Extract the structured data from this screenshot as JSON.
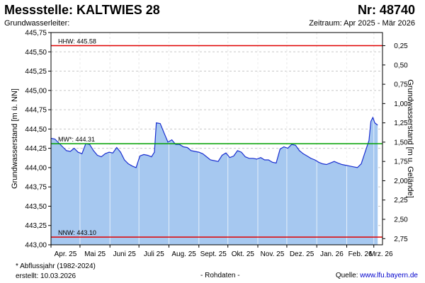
{
  "header": {
    "title": "Messstelle: KALTWIES 28",
    "number": "Nr: 48740",
    "subtitle_left": "Grundwasserleiter:",
    "subtitle_right": "Zeitraum: Apr 2025 - Mär 2026"
  },
  "footer": {
    "note": "* Abflussjahr (1982-2024)",
    "created": "erstellt:  10.03.2026",
    "raw": "- Rohdaten -",
    "source_label": "Quelle:",
    "source_link": "www.lfu.bayern.de"
  },
  "colors": {
    "fill": "#a6c8f0",
    "line": "#1a2fd0",
    "hhw": "#e00000",
    "nnw": "#e00000",
    "mw": "#00a000",
    "grid": "#c8c8c8"
  },
  "chart_data": {
    "type": "area",
    "ylabel": "Grundwasserstand [m ü. NN]",
    "ylabel_right": "Grundwasserstand [m u. Gelände]",
    "ylim": [
      443.0,
      445.75
    ],
    "y_ticks": [
      "445,75",
      "445,50",
      "445,25",
      "445,00",
      "444,75",
      "444,50",
      "444,25",
      "444,00",
      "443,75",
      "443,50",
      "443,25",
      "443,00"
    ],
    "y2_ticks": [
      "0,25",
      "0,50",
      "0,75",
      "1,00",
      "1,25",
      "1,50",
      "1,75",
      "2,00",
      "2,25",
      "2,50",
      "2,75"
    ],
    "x_ticks": [
      "Apr. 25",
      "Mai 25",
      "Juni 25",
      "Juli 25",
      "Aug. 25",
      "Sept. 25",
      "Okt. 25",
      "Nov. 25",
      "Dez. 25",
      "Jan. 26",
      "Feb. 26",
      "Mrz. 26"
    ],
    "grid": true,
    "reference_lines": [
      {
        "label": "HHW: 445.58",
        "value": 445.58
      },
      {
        "label": "MW*: 444.31",
        "value": 444.31
      },
      {
        "label": "NNW: 443.10",
        "value": 443.1
      }
    ],
    "series": [
      {
        "x": [
          "2025-04-01",
          "2025-04-05",
          "2025-04-09",
          "2025-04-13",
          "2025-04-17",
          "2025-04-21",
          "2025-04-25",
          "2025-04-29",
          "2025-05-03",
          "2025-05-07",
          "2025-05-11",
          "2025-05-15",
          "2025-05-19",
          "2025-05-23",
          "2025-05-27",
          "2025-05-31",
          "2025-06-04",
          "2025-06-08",
          "2025-06-12",
          "2025-06-16",
          "2025-06-20",
          "2025-06-24",
          "2025-06-28",
          "2025-07-02",
          "2025-07-06",
          "2025-07-10",
          "2025-07-14",
          "2025-07-17",
          "2025-07-19",
          "2025-07-23",
          "2025-07-27",
          "2025-07-31",
          "2025-08-04",
          "2025-08-08",
          "2025-08-12",
          "2025-08-16",
          "2025-08-20",
          "2025-08-24",
          "2025-08-28",
          "2025-09-01",
          "2025-09-05",
          "2025-09-09",
          "2025-09-13",
          "2025-09-17",
          "2025-09-21",
          "2025-09-25",
          "2025-09-29",
          "2025-10-03",
          "2025-10-07",
          "2025-10-11",
          "2025-10-15",
          "2025-10-19",
          "2025-10-23",
          "2025-10-27",
          "2025-10-31",
          "2025-11-04",
          "2025-11-08",
          "2025-11-12",
          "2025-11-16",
          "2025-11-20",
          "2025-11-24",
          "2025-11-28",
          "2025-12-02",
          "2025-12-06",
          "2025-12-10",
          "2025-12-14",
          "2025-12-18",
          "2025-12-22",
          "2025-12-26",
          "2025-12-30",
          "2026-01-03",
          "2026-01-07",
          "2026-01-11",
          "2026-01-15",
          "2026-01-19",
          "2026-01-23",
          "2026-01-27",
          "2026-01-31",
          "2026-02-04",
          "2026-02-08",
          "2026-02-12",
          "2026-02-16",
          "2026-02-20",
          "2026-02-24",
          "2026-02-26",
          "2026-02-28",
          "2026-03-02",
          "2026-03-05"
        ],
        "y": [
          444.38,
          444.37,
          444.32,
          444.27,
          444.22,
          444.21,
          444.25,
          444.2,
          444.18,
          444.31,
          444.3,
          444.22,
          444.16,
          444.14,
          444.18,
          444.2,
          444.19,
          444.26,
          444.2,
          444.1,
          444.05,
          444.02,
          444.0,
          444.15,
          444.17,
          444.16,
          444.14,
          444.2,
          444.58,
          444.57,
          444.45,
          444.33,
          444.36,
          444.3,
          444.3,
          444.27,
          444.26,
          444.22,
          444.21,
          444.2,
          444.18,
          444.14,
          444.1,
          444.09,
          444.08,
          444.16,
          444.19,
          444.13,
          444.15,
          444.22,
          444.2,
          444.14,
          444.12,
          444.12,
          444.11,
          444.13,
          444.1,
          444.1,
          444.07,
          444.06,
          444.24,
          444.27,
          444.25,
          444.3,
          444.29,
          444.22,
          444.18,
          444.15,
          444.12,
          444.1,
          444.07,
          444.05,
          444.04,
          444.06,
          444.08,
          444.06,
          444.04,
          444.03,
          444.02,
          444.01,
          444.0,
          444.05,
          444.2,
          444.35,
          444.6,
          444.65,
          444.58,
          444.55
        ]
      }
    ]
  }
}
